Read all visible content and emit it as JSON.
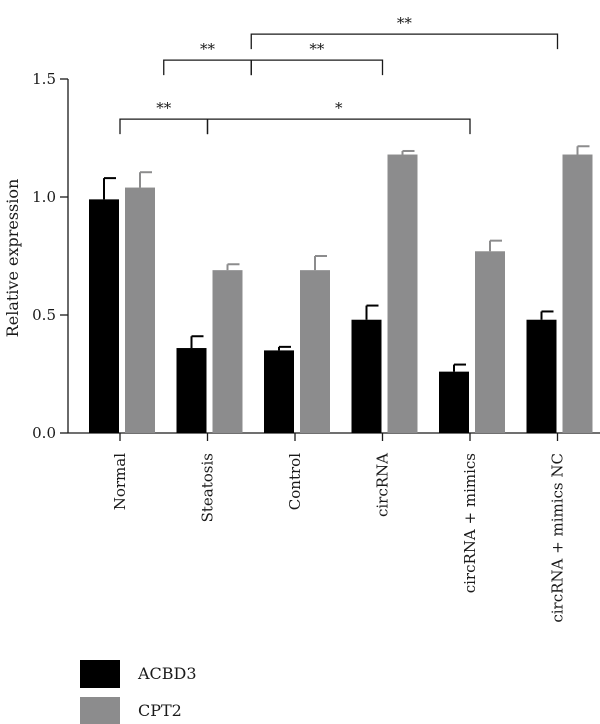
{
  "chart_data": {
    "type": "bar",
    "title": "",
    "xlabel": "",
    "ylabel": "Relative expression",
    "ylim": [
      0,
      1.5
    ],
    "yticks": [
      "0.0",
      "0.5",
      "1.0",
      "1.5"
    ],
    "categories": [
      "Normal",
      "Steatosis",
      "Control",
      "circRNA",
      "circRNA + mimics",
      "circRNA + mimics NC"
    ],
    "series": [
      {
        "name": "ACBD3",
        "color": "#000000",
        "values": [
          0.99,
          0.36,
          0.35,
          0.48,
          0.26,
          0.48
        ],
        "errors": [
          0.09,
          0.05,
          0.015,
          0.06,
          0.03,
          0.035
        ]
      },
      {
        "name": "CPT2",
        "color": "#8c8c8d",
        "values": [
          1.04,
          0.69,
          0.69,
          1.18,
          0.77,
          1.18
        ],
        "errors": [
          0.065,
          0.025,
          0.06,
          0.015,
          0.045,
          0.035
        ]
      }
    ],
    "significance": [
      {
        "label": "**",
        "from": 0,
        "to": 1,
        "y": 1.33
      },
      {
        "label": "*",
        "from": 1,
        "to": 4,
        "y": 1.33
      },
      {
        "label": "**",
        "from": 0.5,
        "to": 1.5,
        "y": 1.58
      },
      {
        "label": "**",
        "from": 1.5,
        "to": 3,
        "y": 1.58
      },
      {
        "label": "**",
        "from": 1.5,
        "to": 5,
        "y": 1.69
      }
    ],
    "legend_position": "bottom-left"
  }
}
